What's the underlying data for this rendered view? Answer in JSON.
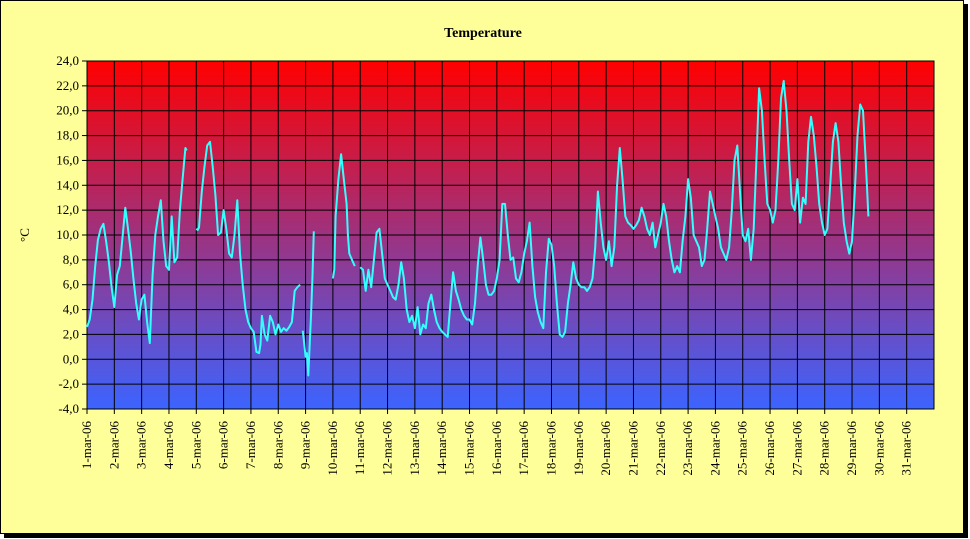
{
  "chart_data": {
    "type": "line",
    "title": "Temperature",
    "ylabel": "°C",
    "xlabel": "",
    "ylim": [
      -4,
      24
    ],
    "ytick_step": 2,
    "ytick_labels": [
      "-4,0",
      "-2,0",
      "0,0",
      "2,0",
      "4,0",
      "6,0",
      "8,0",
      "10,0",
      "12,0",
      "14,0",
      "16,0",
      "18,0",
      "20,0",
      "22,0",
      "24,0"
    ],
    "xlim": [
      1,
      32
    ],
    "categories": [
      "1-mar-06",
      "2-mar-06",
      "3-mar-06",
      "4-mar-06",
      "5-mar-06",
      "6-mar-06",
      "7-mar-06",
      "8-mar-06",
      "9-mar-06",
      "10-mar-06",
      "11-mar-06",
      "12-mar-06",
      "13-mar-06",
      "14-mar-06",
      "15-mar-06",
      "16-mar-06",
      "17-mar-06",
      "18-mar-06",
      "19-mar-06",
      "20-mar-06",
      "21-mar-06",
      "22-mar-06",
      "23-mar-06",
      "24-mar-06",
      "25-mar-06",
      "26-mar-06",
      "27-mar-06",
      "28-mar-06",
      "29-mar-06",
      "30-mar-06",
      "31-mar-06"
    ],
    "grid": true,
    "legend": "none",
    "background_gradient": {
      "top": "#ff0000",
      "bottom": "#3c64ff"
    },
    "line_color": "#33ffff",
    "segments": [
      [
        [
          1.0,
          2.6
        ],
        [
          1.1,
          3.2
        ],
        [
          1.2,
          4.8
        ],
        [
          1.3,
          7.5
        ],
        [
          1.4,
          9.6
        ],
        [
          1.5,
          10.5
        ],
        [
          1.6,
          10.9
        ],
        [
          1.7,
          9.5
        ],
        [
          1.8,
          7.8
        ],
        [
          1.9,
          5.8
        ],
        [
          2.0,
          4.2
        ],
        [
          2.1,
          6.8
        ],
        [
          2.2,
          7.5
        ],
        [
          2.3,
          9.8
        ],
        [
          2.4,
          12.2
        ],
        [
          2.5,
          10.5
        ],
        [
          2.6,
          8.7
        ],
        [
          2.7,
          6.5
        ],
        [
          2.8,
          4.5
        ],
        [
          2.9,
          3.2
        ],
        [
          3.0,
          4.8
        ],
        [
          3.1,
          5.2
        ],
        [
          3.2,
          3.0
        ],
        [
          3.3,
          1.3
        ],
        [
          3.4,
          6.8
        ],
        [
          3.5,
          10.0
        ],
        [
          3.6,
          11.5
        ],
        [
          3.7,
          12.8
        ],
        [
          3.8,
          9.5
        ],
        [
          3.9,
          7.5
        ],
        [
          4.0,
          7.2
        ],
        [
          4.1,
          11.5
        ],
        [
          4.2,
          7.8
        ],
        [
          4.3,
          8.2
        ],
        [
          4.4,
          12.0
        ],
        [
          4.5,
          14.5
        ],
        [
          4.6,
          17.0
        ],
        [
          4.65,
          16.8
        ]
      ],
      [
        [
          5.0,
          10.5
        ],
        [
          5.05,
          10.4
        ],
        [
          5.1,
          10.6
        ],
        [
          5.2,
          13.5
        ],
        [
          5.3,
          15.5
        ],
        [
          5.4,
          17.2
        ],
        [
          5.5,
          17.5
        ],
        [
          5.6,
          15.5
        ],
        [
          5.7,
          13.2
        ],
        [
          5.8,
          10.0
        ],
        [
          5.9,
          10.2
        ],
        [
          6.0,
          12.0
        ],
        [
          6.1,
          10.5
        ],
        [
          6.2,
          8.5
        ],
        [
          6.3,
          8.2
        ],
        [
          6.4,
          10.0
        ],
        [
          6.5,
          12.8
        ],
        [
          6.6,
          8.5
        ],
        [
          6.7,
          6.0
        ],
        [
          6.8,
          4.0
        ],
        [
          6.9,
          3.0
        ],
        [
          7.0,
          2.5
        ],
        [
          7.1,
          2.2
        ],
        [
          7.2,
          0.6
        ],
        [
          7.3,
          0.5
        ],
        [
          7.35,
          1.2
        ],
        [
          7.4,
          3.5
        ],
        [
          7.5,
          2.0
        ],
        [
          7.6,
          1.5
        ],
        [
          7.7,
          3.5
        ],
        [
          7.8,
          3.0
        ],
        [
          7.9,
          2.0
        ],
        [
          8.0,
          2.8
        ],
        [
          8.1,
          2.2
        ],
        [
          8.2,
          2.5
        ],
        [
          8.3,
          2.3
        ],
        [
          8.4,
          2.6
        ],
        [
          8.5,
          3.0
        ],
        [
          8.6,
          5.5
        ],
        [
          8.7,
          5.8
        ],
        [
          8.8,
          6.0
        ]
      ],
      [
        [
          8.9,
          2.3
        ],
        [
          9.0,
          0.2
        ],
        [
          9.05,
          0.5
        ],
        [
          9.1,
          -1.3
        ],
        [
          9.2,
          3.5
        ],
        [
          9.25,
          6.5
        ],
        [
          9.3,
          10.3
        ]
      ],
      [
        [
          10.0,
          6.5
        ],
        [
          10.05,
          7.2
        ],
        [
          10.1,
          11.5
        ],
        [
          10.2,
          14.5
        ],
        [
          10.3,
          16.5
        ],
        [
          10.4,
          14.5
        ],
        [
          10.5,
          12.5
        ],
        [
          10.55,
          10.0
        ],
        [
          10.6,
          8.5
        ],
        [
          10.7,
          8.0
        ],
        [
          10.8,
          7.5
        ]
      ],
      [
        [
          11.0,
          7.4
        ],
        [
          11.1,
          7.2
        ],
        [
          11.2,
          5.5
        ],
        [
          11.3,
          7.2
        ],
        [
          11.4,
          5.8
        ],
        [
          11.5,
          8.0
        ],
        [
          11.6,
          10.2
        ],
        [
          11.7,
          10.5
        ],
        [
          11.8,
          8.5
        ],
        [
          11.9,
          6.5
        ],
        [
          12.0,
          6.0
        ],
        [
          12.1,
          5.5
        ],
        [
          12.2,
          5.0
        ],
        [
          12.3,
          4.8
        ],
        [
          12.4,
          6.0
        ],
        [
          12.5,
          7.8
        ],
        [
          12.6,
          6.5
        ],
        [
          12.7,
          4.0
        ],
        [
          12.8,
          3.0
        ],
        [
          12.9,
          3.5
        ],
        [
          13.0,
          2.5
        ],
        [
          13.1,
          4.2
        ],
        [
          13.2,
          2.0
        ],
        [
          13.3,
          2.8
        ],
        [
          13.4,
          2.5
        ],
        [
          13.5,
          4.5
        ],
        [
          13.6,
          5.2
        ],
        [
          13.7,
          4.0
        ],
        [
          13.8,
          3.0
        ],
        [
          13.9,
          2.5
        ],
        [
          14.0,
          2.2
        ],
        [
          14.1,
          2.0
        ],
        [
          14.2,
          1.8
        ],
        [
          14.3,
          4.5
        ],
        [
          14.4,
          7.0
        ],
        [
          14.5,
          5.5
        ],
        [
          14.6,
          4.8
        ],
        [
          14.7,
          4.0
        ],
        [
          14.8,
          3.5
        ],
        [
          14.9,
          3.2
        ],
        [
          15.0,
          3.2
        ],
        [
          15.1,
          2.8
        ],
        [
          15.2,
          4.5
        ],
        [
          15.3,
          7.5
        ],
        [
          15.4,
          9.8
        ],
        [
          15.5,
          8.0
        ],
        [
          15.6,
          6.0
        ],
        [
          15.7,
          5.2
        ],
        [
          15.8,
          5.2
        ],
        [
          15.9,
          5.5
        ],
        [
          16.0,
          6.5
        ],
        [
          16.1,
          8.0
        ],
        [
          16.2,
          12.5
        ],
        [
          16.3,
          12.5
        ],
        [
          16.4,
          10.0
        ],
        [
          16.5,
          8.0
        ],
        [
          16.6,
          8.2
        ],
        [
          16.7,
          6.5
        ],
        [
          16.8,
          6.2
        ],
        [
          16.9,
          7.0
        ],
        [
          17.0,
          8.5
        ],
        [
          17.1,
          9.5
        ],
        [
          17.2,
          11.0
        ],
        [
          17.3,
          7.5
        ],
        [
          17.4,
          5.0
        ],
        [
          17.5,
          3.8
        ],
        [
          17.6,
          3.0
        ],
        [
          17.7,
          2.5
        ],
        [
          17.8,
          7.0
        ],
        [
          17.9,
          9.7
        ],
        [
          18.0,
          9.2
        ],
        [
          18.1,
          7.5
        ],
        [
          18.2,
          4.5
        ],
        [
          18.3,
          2.0
        ],
        [
          18.4,
          1.8
        ],
        [
          18.5,
          2.2
        ],
        [
          18.6,
          4.5
        ],
        [
          18.7,
          6.0
        ],
        [
          18.8,
          7.8
        ],
        [
          18.9,
          6.5
        ],
        [
          19.0,
          6.0
        ],
        [
          19.1,
          5.8
        ],
        [
          19.2,
          5.8
        ],
        [
          19.3,
          5.5
        ],
        [
          19.4,
          5.8
        ],
        [
          19.5,
          6.5
        ],
        [
          19.6,
          9.0
        ],
        [
          19.7,
          13.5
        ],
        [
          19.8,
          11.0
        ],
        [
          19.9,
          9.0
        ],
        [
          20.0,
          8.0
        ],
        [
          20.1,
          9.5
        ],
        [
          20.2,
          7.5
        ],
        [
          20.3,
          9.0
        ],
        [
          20.4,
          14.0
        ],
        [
          20.5,
          17.0
        ],
        [
          20.6,
          14.5
        ],
        [
          20.7,
          11.5
        ],
        [
          20.8,
          11.0
        ],
        [
          20.9,
          10.8
        ],
        [
          21.0,
          10.5
        ],
        [
          21.1,
          10.8
        ],
        [
          21.2,
          11.2
        ],
        [
          21.3,
          12.2
        ],
        [
          21.4,
          11.5
        ],
        [
          21.5,
          10.5
        ],
        [
          21.6,
          10.0
        ],
        [
          21.7,
          11.0
        ],
        [
          21.8,
          9.0
        ],
        [
          21.9,
          10.0
        ],
        [
          22.0,
          11.0
        ],
        [
          22.1,
          12.5
        ],
        [
          22.2,
          11.5
        ],
        [
          22.3,
          9.5
        ],
        [
          22.4,
          8.0
        ],
        [
          22.5,
          7.0
        ],
        [
          22.6,
          7.5
        ],
        [
          22.7,
          7.0
        ],
        [
          22.8,
          9.5
        ],
        [
          22.9,
          11.5
        ],
        [
          23.0,
          14.5
        ],
        [
          23.1,
          13.0
        ],
        [
          23.2,
          10.0
        ],
        [
          23.3,
          9.5
        ],
        [
          23.4,
          9.0
        ],
        [
          23.5,
          7.5
        ],
        [
          23.6,
          8.0
        ],
        [
          23.7,
          10.5
        ],
        [
          23.8,
          13.5
        ],
        [
          23.9,
          12.5
        ],
        [
          24.0,
          11.5
        ],
        [
          24.1,
          10.5
        ],
        [
          24.2,
          9.0
        ],
        [
          24.3,
          8.5
        ],
        [
          24.4,
          8.0
        ],
        [
          24.5,
          9.0
        ],
        [
          24.6,
          12.0
        ],
        [
          24.7,
          16.0
        ],
        [
          24.8,
          17.2
        ],
        [
          24.9,
          13.5
        ],
        [
          25.0,
          10.0
        ],
        [
          25.1,
          9.5
        ],
        [
          25.2,
          10.5
        ],
        [
          25.3,
          8.0
        ],
        [
          25.4,
          10.5
        ],
        [
          25.5,
          16.0
        ],
        [
          25.6,
          21.8
        ],
        [
          25.7,
          20.0
        ],
        [
          25.8,
          16.0
        ],
        [
          25.9,
          12.5
        ],
        [
          26.0,
          12.0
        ],
        [
          26.1,
          11.0
        ],
        [
          26.2,
          12.0
        ],
        [
          26.3,
          16.0
        ],
        [
          26.4,
          21.0
        ],
        [
          26.5,
          22.4
        ],
        [
          26.6,
          20.0
        ],
        [
          26.7,
          16.0
        ],
        [
          26.8,
          12.5
        ],
        [
          26.9,
          12.0
        ],
        [
          27.0,
          14.5
        ],
        [
          27.1,
          11.0
        ],
        [
          27.2,
          13.0
        ],
        [
          27.3,
          12.5
        ],
        [
          27.4,
          17.5
        ],
        [
          27.5,
          19.5
        ],
        [
          27.6,
          18.0
        ],
        [
          27.7,
          15.5
        ],
        [
          27.8,
          12.5
        ],
        [
          27.9,
          11.0
        ],
        [
          28.0,
          10.0
        ],
        [
          28.1,
          10.5
        ],
        [
          28.2,
          14.0
        ],
        [
          28.3,
          17.5
        ],
        [
          28.4,
          19.0
        ],
        [
          28.5,
          17.5
        ],
        [
          28.6,
          14.0
        ],
        [
          28.7,
          11.0
        ],
        [
          28.8,
          9.5
        ],
        [
          28.9,
          8.5
        ],
        [
          29.0,
          9.5
        ],
        [
          29.1,
          13.5
        ],
        [
          29.2,
          18.0
        ],
        [
          29.3,
          20.5
        ],
        [
          29.4,
          20.0
        ],
        [
          29.5,
          16.0
        ],
        [
          29.6,
          11.5
        ]
      ]
    ]
  }
}
